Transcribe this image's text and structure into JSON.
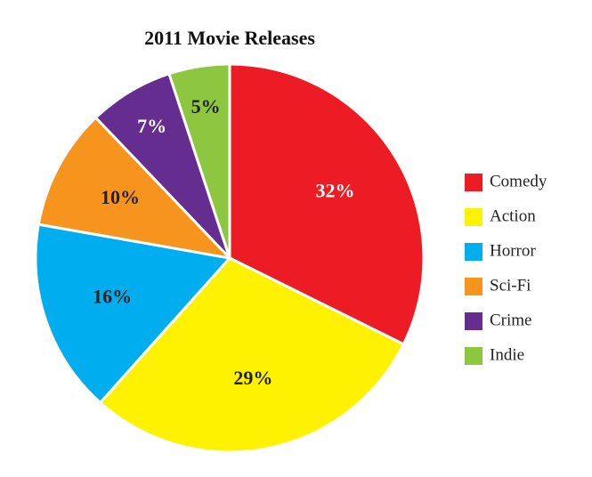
{
  "chart_data": {
    "type": "pie",
    "title": "2011 Movie Releases",
    "categories": [
      "Comedy",
      "Action",
      "Horror",
      "Sci-Fi",
      "Crime",
      "Indie"
    ],
    "values": [
      32,
      29,
      16,
      10,
      7,
      5
    ],
    "value_labels": [
      "32%",
      "29%",
      "16%",
      "10%",
      "7%",
      "5%"
    ],
    "colors": [
      "#ed1c24",
      "#fff200",
      "#00aeef",
      "#f7941d",
      "#662d91",
      "#8dc63f"
    ],
    "legend": "right"
  }
}
